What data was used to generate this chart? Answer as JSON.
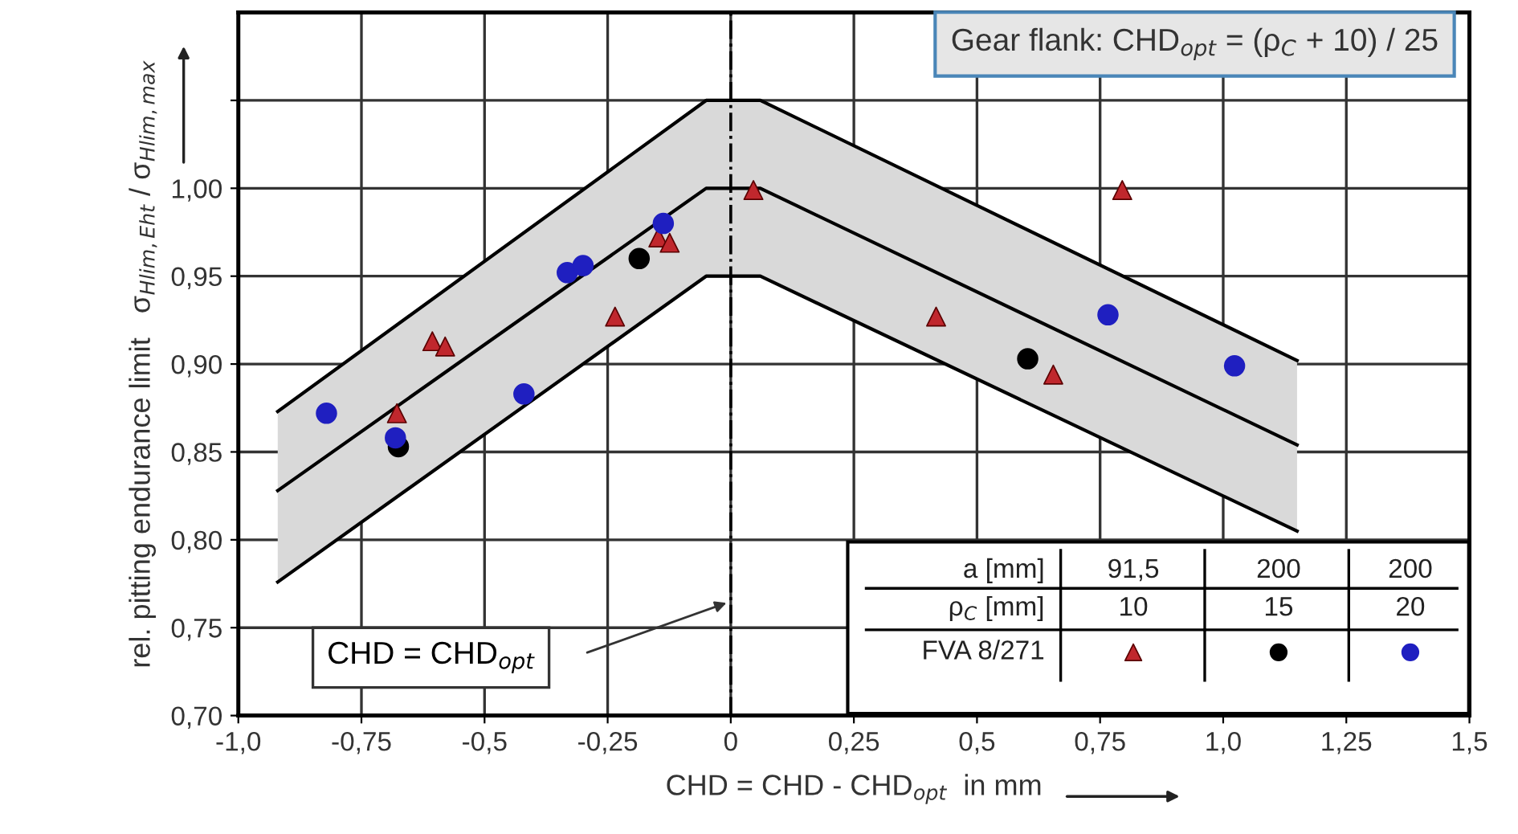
{
  "chart_data": {
    "type": "scatter",
    "xlabel": "CHD = CHD - CHD$_{opt}$  in mm",
    "ylabel": "rel. pitting endurance limit   σ$_{Hlim,Eht}$ / σ$_{Hlim,max}$",
    "xlim": [
      -1.0,
      1.5
    ],
    "ylim": [
      0.7,
      1.1
    ],
    "xticks": [
      {
        "value": -1.0,
        "label": "-1,0"
      },
      {
        "value": -0.75,
        "label": "-0,75"
      },
      {
        "value": -0.5,
        "label": "-0,5"
      },
      {
        "value": -0.25,
        "label": "-0,25"
      },
      0,
      {
        "value": 0.25,
        "label": "0,25"
      },
      {
        "value": 0.5,
        "label": "0,5"
      },
      {
        "value": 0.75,
        "label": "0,75"
      },
      {
        "value": 1.0,
        "label": "1,0"
      },
      {
        "value": 1.25,
        "label": "1,25"
      },
      {
        "value": 1.5,
        "label": "1,5"
      }
    ],
    "yticks": [
      {
        "value": 0.7,
        "label": "0,70"
      },
      {
        "value": 0.75,
        "label": "0,75"
      },
      {
        "value": 0.8,
        "label": "0,80"
      },
      {
        "value": 0.85,
        "label": "0,85"
      },
      {
        "value": 0.9,
        "label": "0,90"
      },
      {
        "value": 0.95,
        "label": "0,95"
      },
      {
        "value": 1.0,
        "label": "1,00"
      },
      {
        "value": 1.05,
        "label": null
      }
    ],
    "grid": true,
    "ref_lines": [
      {
        "axis": "x",
        "value": 0,
        "label": "CHD = CHD$_{opt}$",
        "line_style": "dashdot",
        "color": "#000000"
      }
    ],
    "annotations": [
      "Gear flank: CHD$_{opt}$ = (ρ$_{C}$ + 10) / 25",
      "a [mm]",
      "91,5",
      "200",
      "200",
      "ρ$_{C}$ [mm]",
      "10",
      "15",
      "20",
      "FVA 8/271"
    ],
    "series": [
      {
        "type": "line",
        "color": "#000000",
        "marker": "none",
        "line_style": "solid",
        "x": [
          -0.92,
          -0.05,
          0.06,
          1.15
        ],
        "values": [
          0.873,
          1.05,
          1.05,
          0.902
        ]
      },
      {
        "type": "line",
        "color": "#000000",
        "marker": "none",
        "line_style": "solid",
        "x": [
          -0.92,
          -0.05,
          0.06,
          1.15
        ],
        "values": [
          0.828,
          1.0,
          1.0,
          0.854
        ],
        "lower": [
          0.776,
          0.95,
          0.95,
          0.805
        ],
        "upper": [
          0.873,
          1.05,
          1.05,
          0.902
        ]
      },
      {
        "type": "line",
        "color": "#000000",
        "marker": "none",
        "line_style": "solid",
        "x": [
          -0.92,
          -0.05,
          0.06,
          1.15
        ],
        "values": [
          0.776,
          0.95,
          0.95,
          0.805
        ]
      },
      {
        "color": "#c0272d",
        "marker": "triangle",
        "x": [
          -0.678,
          -0.606,
          -0.58,
          -0.235,
          -0.147,
          -0.124,
          0.046,
          0.795,
          0.417,
          0.655
        ],
        "values": [
          0.872,
          0.913,
          0.91,
          0.927,
          0.972,
          0.969,
          0.999,
          0.999,
          0.927,
          0.894
        ]
      },
      {
        "color": "#000000",
        "marker": "circle",
        "x": [
          -0.675,
          -0.186,
          0.603
        ],
        "values": [
          0.853,
          0.96,
          0.903
        ]
      },
      {
        "color": "#1f1fc0",
        "marker": "circle",
        "x": [
          -0.821,
          -0.681,
          -0.42,
          -0.332,
          -0.3,
          -0.137,
          0.766,
          1.023
        ],
        "values": [
          0.872,
          0.858,
          0.883,
          0.952,
          0.956,
          0.98,
          0.928,
          0.899
        ]
      }
    ]
  }
}
